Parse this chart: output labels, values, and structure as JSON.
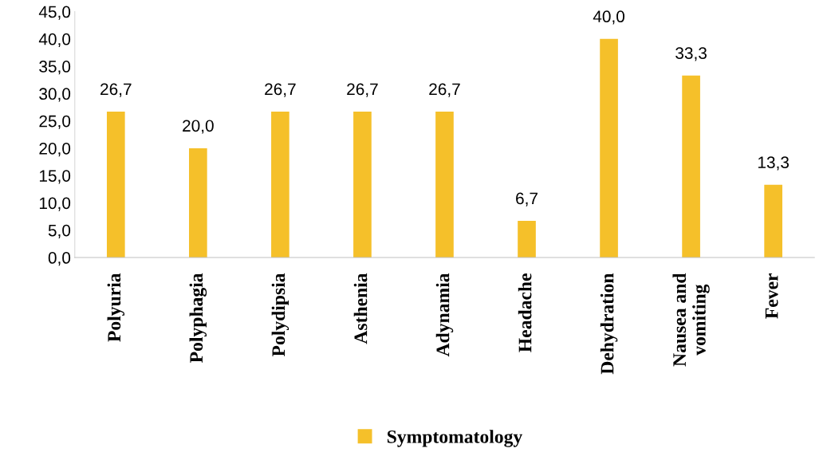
{
  "chart_data": {
    "type": "bar",
    "categories": [
      "Polyuria",
      "Polyphagia",
      "Polydipsia",
      "Asthenia",
      "Adynamia",
      "Headache",
      "Dehydration",
      "Nausea and\nvomiting",
      "Fever"
    ],
    "series": [
      {
        "name": "Symptomatology",
        "color": "#f5c02a",
        "values": [
          26.7,
          20.0,
          26.7,
          26.7,
          26.7,
          6.7,
          40.0,
          33.3,
          13.3
        ],
        "value_labels": [
          "26,7",
          "20,0",
          "26,7",
          "26,7",
          "26,7",
          "6,7",
          "40,0",
          "33,3",
          "13,3"
        ]
      }
    ],
    "ylim": [
      0,
      45
    ],
    "yticks": [
      {
        "value": 0,
        "label": "0,0"
      },
      {
        "value": 5,
        "label": "5,0"
      },
      {
        "value": 10,
        "label": "10,0"
      },
      {
        "value": 15,
        "label": "15,0"
      },
      {
        "value": 20,
        "label": "20,0"
      },
      {
        "value": 25,
        "label": "25,0"
      },
      {
        "value": 30,
        "label": "30,0"
      },
      {
        "value": 35,
        "label": "35,0"
      },
      {
        "value": 40,
        "label": "40,0"
      },
      {
        "value": 45,
        "label": "45,0"
      }
    ],
    "grid": false,
    "legend": "bottom"
  }
}
